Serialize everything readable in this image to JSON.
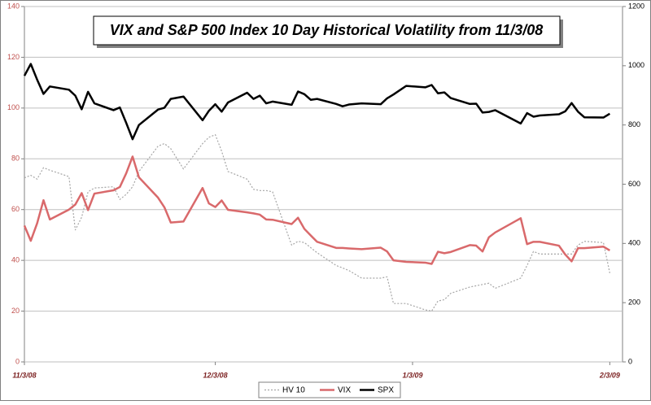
{
  "chart_data": {
    "type": "line",
    "title": "VIX and S&P 500 Index 10 Day Historical Volatility from 11/3/08",
    "x": [
      0,
      1,
      2,
      3,
      4,
      7,
      8,
      9,
      10,
      11,
      14,
      15,
      16,
      17,
      18,
      21,
      22,
      23,
      25,
      28,
      29,
      30,
      31,
      32,
      35,
      36,
      37,
      38,
      39,
      42,
      43,
      44,
      45,
      46,
      49,
      50,
      51,
      53,
      56,
      57,
      58,
      60,
      63,
      64,
      65,
      66,
      67,
      70,
      71,
      72,
      73,
      74,
      78,
      79,
      80,
      81,
      84,
      85,
      86,
      87,
      88,
      91,
      92
    ],
    "xlim": [
      0,
      94
    ],
    "xticks": [
      {
        "value": 0,
        "label": "11/3/08"
      },
      {
        "value": 30,
        "label": "12/3/08"
      },
      {
        "value": 61,
        "label": "1/3/09"
      },
      {
        "value": 92,
        "label": "2/3/09"
      }
    ],
    "ylim": [
      0,
      140
    ],
    "yticks": [
      0,
      20,
      40,
      60,
      80,
      100,
      120,
      140
    ],
    "y2lim": [
      0,
      1200
    ],
    "y2ticks": [
      0,
      200,
      400,
      600,
      800,
      1000,
      1200
    ],
    "grid": true,
    "legend": "bottom",
    "series": [
      {
        "name": "HV 10",
        "color": "#a6a6a6",
        "line_style": "dotted",
        "values": [
          72.5,
          73.5,
          72,
          76.5,
          75.5,
          73,
          52,
          57,
          67,
          68.5,
          69,
          64,
          66,
          69,
          75,
          85,
          86,
          84,
          76,
          86,
          88.5,
          89.5,
          83,
          75,
          72,
          68,
          67.5,
          67.5,
          67,
          46,
          47.5,
          47,
          45,
          43,
          38,
          37,
          36,
          33,
          33,
          33.5,
          23,
          23,
          20.5,
          20,
          24,
          24.5,
          27,
          29.5,
          30,
          30.5,
          31,
          29,
          33,
          38,
          43.5,
          42.5,
          42.5,
          42.5,
          42.5,
          46,
          47.5,
          47,
          35
        ]
      },
      {
        "name": "VIX",
        "color": "#d9696b",
        "line_style": "solid",
        "values": [
          53.7,
          47.7,
          54.6,
          63.7,
          56.1,
          60.0,
          62.0,
          66.5,
          59.8,
          66.3,
          67.6,
          68.9,
          74.3,
          80.9,
          72.7,
          64.7,
          60.9,
          54.9,
          55.3,
          68.5,
          62.4,
          61.0,
          63.6,
          59.9,
          58.9,
          58.5,
          58.0,
          56.1,
          56.0,
          54.3,
          56.8,
          52.4,
          49.8,
          47.3,
          44.9,
          44.9,
          44.7,
          44.4,
          45.0,
          43.5,
          40.0,
          39.4,
          39.1,
          38.6,
          43.4,
          42.8,
          43.3,
          46.0,
          45.8,
          43.5,
          49.1,
          51.0,
          56.6,
          46.4,
          47.3,
          47.3,
          45.8,
          42.3,
          39.6,
          44.8,
          44.8,
          45.4,
          43.9
        ]
      },
      {
        "name": "SPX",
        "color": "#000000",
        "line_style": "solid",
        "axis": "y2",
        "values": [
          966,
          1006,
          953,
          905,
          930,
          919,
          899,
          853,
          912,
          873,
          850,
          859,
          807,
          752,
          800,
          852,
          858,
          888,
          896,
          816,
          848,
          870,
          845,
          876,
          909,
          888,
          899,
          873,
          879,
          868,
          913,
          904,
          885,
          888,
          871,
          863,
          869,
          873,
          870,
          890,
          903,
          932,
          927,
          935,
          907,
          910,
          891,
          871,
          872,
          842,
          844,
          850,
          805,
          840,
          828,
          832,
          836,
          846,
          874,
          845,
          826,
          825,
          838
        ]
      }
    ]
  }
}
